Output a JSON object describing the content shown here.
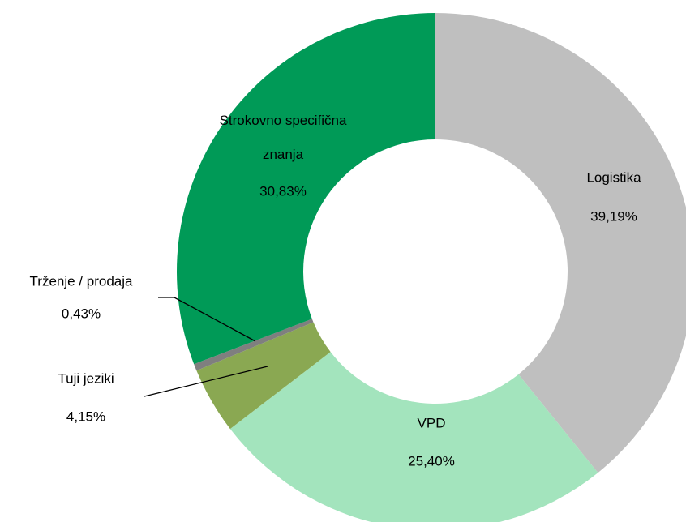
{
  "chart_data": {
    "type": "donut",
    "categories": [
      "Logistika",
      "VPD",
      "Tuji jeziki",
      "Trženje / prodaja",
      "Strokovno specifična znanja"
    ],
    "values": [
      39.19,
      25.4,
      4.15,
      0.43,
      30.83
    ],
    "value_labels": [
      "39,19%",
      "25,40%",
      "4,15%",
      "0,43%",
      "30,83%"
    ],
    "colors": [
      "#bfbfbf",
      "#a3e4bd",
      "#8aa852",
      "#7f7f7f",
      "#009a57"
    ]
  }
}
